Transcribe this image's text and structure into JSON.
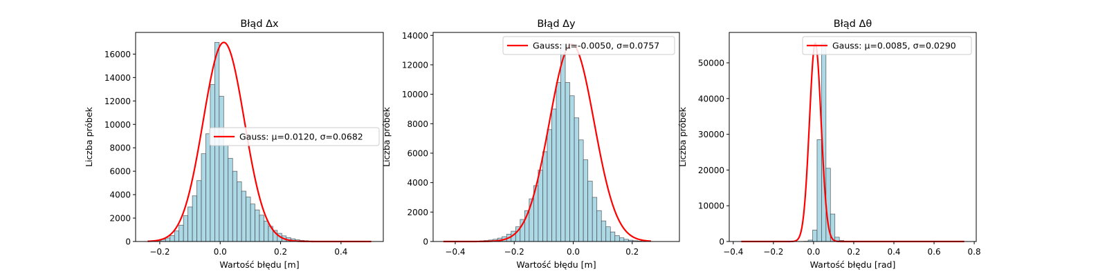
{
  "chart_data": [
    {
      "type": "bar",
      "title": "Błąd Δx",
      "xlabel": "Wartość błędu [m]",
      "ylabel": "Liczba próbek",
      "xlim": [
        -0.28,
        0.54
      ],
      "ylim": [
        0,
        17850
      ],
      "xticks": [
        -0.2,
        0.0,
        0.2,
        0.4
      ],
      "xtick_labels": [
        "−0.2",
        "0.0",
        "0.2",
        "0.4"
      ],
      "yticks": [
        0,
        2000,
        4000,
        6000,
        8000,
        10000,
        12000,
        14000,
        16000
      ],
      "bin_start": -0.24,
      "bin_width": 0.0148,
      "counts": [
        20,
        40,
        90,
        180,
        300,
        500,
        900,
        1400,
        2200,
        2950,
        3900,
        5200,
        7500,
        9200,
        13400,
        17000,
        12400,
        8200,
        7100,
        6000,
        5100,
        4300,
        3800,
        3200,
        2700,
        2250,
        1750,
        1300,
        950,
        700,
        480,
        330,
        230,
        150,
        100,
        70,
        45,
        30,
        20,
        15,
        12,
        10,
        8,
        6,
        5,
        4,
        3,
        2,
        2,
        1
      ],
      "series": [
        {
          "name": "Gauss: μ=0.0120, σ=0.0682",
          "mu": 0.012,
          "sigma": 0.0682,
          "peak": 17000
        }
      ],
      "legend_loc": "center-right",
      "grid": false
    },
    {
      "type": "bar",
      "title": "Błąd Δy",
      "xlabel": "Wartość błędu [m]",
      "ylabel": "Liczba próbek",
      "xlim": [
        -0.475,
        0.36
      ],
      "ylim": [
        0,
        14200
      ],
      "xticks": [
        -0.4,
        -0.2,
        0.0,
        0.2
      ],
      "xtick_labels": [
        "−0.4",
        "−0.2",
        "0.0",
        "0.2"
      ],
      "yticks": [
        0,
        2000,
        4000,
        6000,
        8000,
        10000,
        12000,
        14000
      ],
      "bin_start": -0.44,
      "bin_width": 0.0153,
      "counts": [
        2,
        3,
        5,
        8,
        10,
        15,
        20,
        30,
        45,
        70,
        100,
        150,
        230,
        330,
        500,
        700,
        1000,
        1500,
        2100,
        2900,
        3800,
        4850,
        6100,
        7600,
        9000,
        10800,
        13400,
        10800,
        9900,
        8400,
        6900,
        5550,
        4100,
        3000,
        2100,
        1400,
        1000,
        650,
        400,
        250,
        150,
        90,
        50,
        30,
        15,
        8
      ],
      "series": [
        {
          "name": "Gauss: μ=-0.0050, σ=0.0757",
          "mu": -0.005,
          "sigma": 0.0757,
          "peak": 13400
        }
      ],
      "legend_loc": "upper-right",
      "grid": false
    },
    {
      "type": "bar",
      "title": "Błąd Δθ",
      "xlabel": "Wartość błędu [rad]",
      "ylabel": "Liczba próbek",
      "xlim": [
        -0.42,
        0.81
      ],
      "ylim": [
        0,
        58500
      ],
      "xticks": [
        -0.4,
        -0.2,
        0.0,
        0.2,
        0.4,
        0.6,
        0.8
      ],
      "xtick_labels": [
        "−0.4",
        "−0.2",
        "0.0",
        "0.2",
        "0.4",
        "0.6",
        "0.8"
      ],
      "yticks": [
        0,
        10000,
        20000,
        30000,
        40000,
        50000
      ],
      "bin_start": -0.36,
      "bin_width": 0.0222,
      "counts": [
        0,
        0,
        0,
        0,
        0,
        0,
        0,
        0,
        0,
        0,
        0,
        0,
        0,
        10,
        70,
        400,
        3200,
        28500,
        55500,
        20500,
        7700,
        1200,
        300,
        100,
        40,
        20,
        10,
        5,
        3,
        2,
        1,
        1,
        1,
        0,
        0,
        0,
        0,
        0,
        0,
        0,
        0,
        0,
        0,
        0,
        0,
        0,
        0,
        0,
        0,
        0
      ],
      "series": [
        {
          "name": "Gauss: μ=0.0085, σ=0.0290",
          "mu": 0.0085,
          "sigma": 0.029,
          "peak": 55500
        }
      ],
      "legend_loc": "upper-right",
      "grid": false
    }
  ],
  "colors": {
    "bar_fill": "#add8e6",
    "bar_edge": "#333333",
    "gauss_line": "#ff0000",
    "axes": "#000000",
    "legend_border": "#cccccc"
  }
}
